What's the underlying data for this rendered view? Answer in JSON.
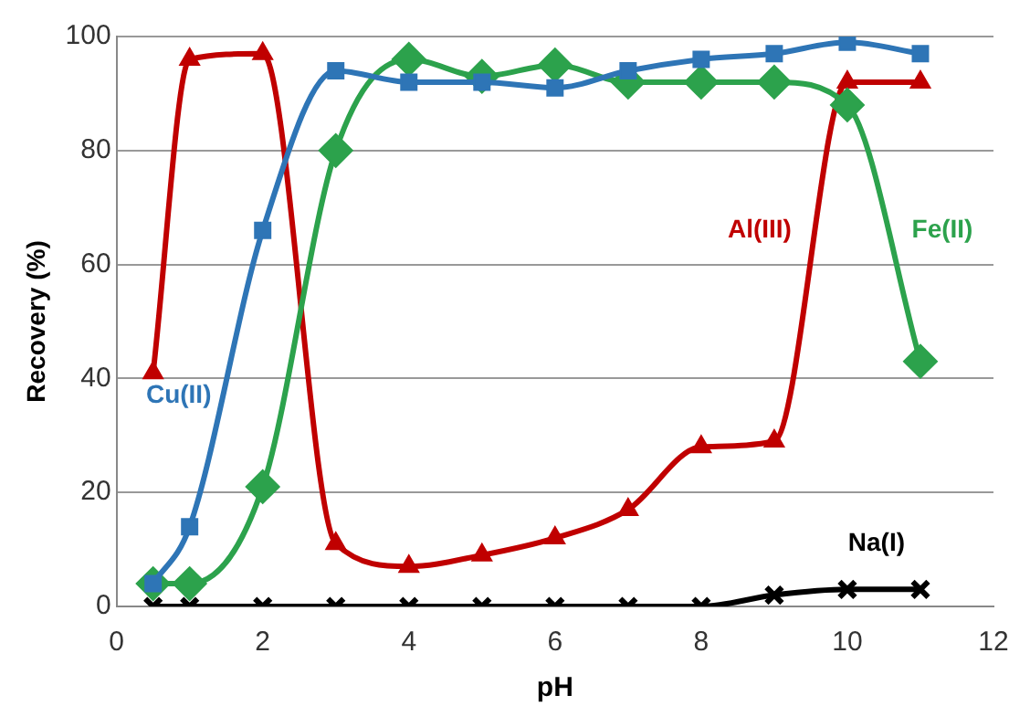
{
  "chart_data": {
    "type": "line",
    "xlabel": "pH",
    "ylabel": "Recovery (%)",
    "xlim": [
      0,
      12
    ],
    "xticks": [
      0,
      2,
      4,
      6,
      8,
      10,
      12
    ],
    "ylim": [
      0,
      100
    ],
    "yticks": [
      0,
      20,
      40,
      60,
      80,
      100
    ],
    "grid": "y",
    "legend": false,
    "x": [
      0.5,
      1,
      2,
      3,
      4,
      5,
      6,
      7,
      8,
      9,
      10,
      11
    ],
    "series": [
      {
        "name": "Cu(II)",
        "color": "#2e75b6",
        "marker": "square",
        "values": [
          4,
          14,
          66,
          94,
          92,
          92,
          91,
          94,
          96,
          97,
          99,
          97
        ]
      },
      {
        "name": "Fe(II)",
        "color": "#2ca24c",
        "marker": "diamond",
        "values": [
          4,
          4,
          21,
          80,
          96,
          93,
          95,
          92,
          92,
          92,
          88,
          43
        ]
      },
      {
        "name": "Al(III)",
        "color": "#c00000",
        "marker": "triangle",
        "values": [
          41,
          96,
          97,
          11,
          7,
          9,
          12,
          17,
          28,
          29,
          92,
          92
        ]
      },
      {
        "name": "Na(I)",
        "color": "#000000",
        "marker": "cross",
        "values": [
          0,
          0,
          0,
          0,
          0,
          0,
          0,
          0,
          0,
          2,
          3,
          3
        ]
      }
    ]
  }
}
